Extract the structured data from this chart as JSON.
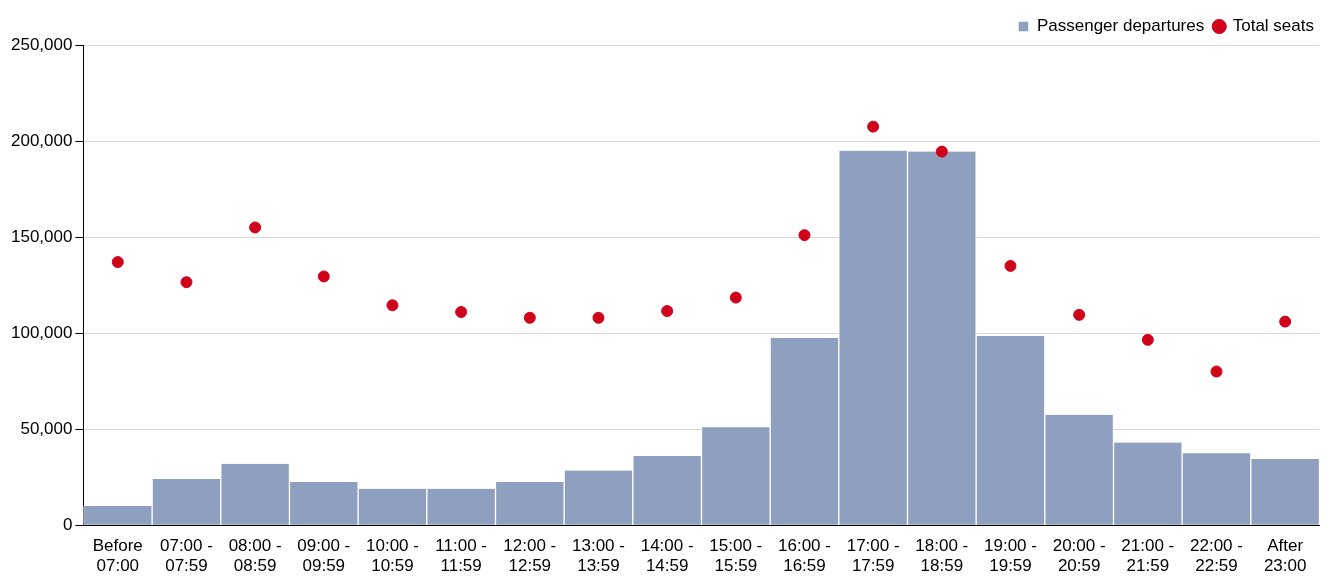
{
  "chart_data": {
    "type": "bar",
    "categories": [
      "Before 07:00",
      "07:00 - 07:59",
      "08:00 - 08:59",
      "09:00 - 09:59",
      "10:00 - 10:59",
      "11:00 - 11:59",
      "12:00 - 12:59",
      "13:00 - 13:59",
      "14:00 - 14:59",
      "15:00 - 15:59",
      "16:00 - 16:59",
      "17:00 - 17:59",
      "18:00 - 18:59",
      "19:00 - 19:59",
      "20:00 - 20:59",
      "21:00 - 21:59",
      "22:00 - 22:59",
      "After 23:00"
    ],
    "series": [
      {
        "name": "Passenger departures",
        "color": "#8f9fc0",
        "values": [
          10000,
          24000,
          32000,
          22500,
          19000,
          19000,
          22500,
          28500,
          36000,
          51000,
          97500,
          195000,
          194500,
          98500,
          57500,
          43000,
          37500,
          34500
        ]
      },
      {
        "name": "Total seats",
        "type": "scatter",
        "color": "#d0021b",
        "values": [
          137000,
          126500,
          155000,
          129500,
          114500,
          111000,
          108000,
          108000,
          111500,
          118500,
          151000,
          207500,
          194500,
          135000,
          109500,
          96500,
          80000,
          106000
        ]
      }
    ],
    "ylim": [
      0,
      250000
    ],
    "yticks": [
      0,
      {
        "value": 50000,
        "label": "50,000"
      },
      {
        "value": 100000,
        "label": "100,000"
      },
      {
        "value": 150000,
        "label": "150,000"
      },
      {
        "value": 200000,
        "label": "200,000"
      },
      {
        "value": 250000,
        "label": "250,000"
      }
    ],
    "grid": "y",
    "legend": "top right",
    "marker": "circle"
  }
}
